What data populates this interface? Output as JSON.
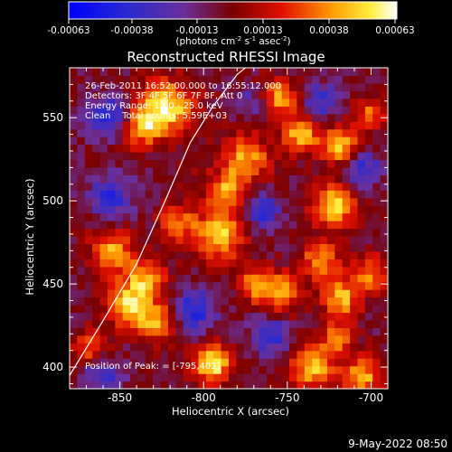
{
  "colorbar": {
    "tick_labels": [
      "-0.00063",
      "-0.00038",
      "-0.00013",
      "0.00013",
      "0.00038",
      "0.00063"
    ],
    "units_parts": [
      "(photons cm",
      "-2",
      " s",
      "-1",
      " asec",
      "-2",
      ")"
    ]
  },
  "chart_data": {
    "type": "heatmap",
    "title": "Reconstructed RHESSI Image",
    "xlabel": "Heliocentric X (arcsec)",
    "ylabel": "Heliocentric Y (arcsec)",
    "xlim": [
      -880,
      -690
    ],
    "ylim": [
      387,
      580
    ],
    "x_ticks": [
      -850,
      -800,
      -750,
      -700
    ],
    "y_ticks": [
      400,
      450,
      500,
      550
    ],
    "value_range": [
      -0.00063,
      0.00063
    ],
    "colormap": "blue-purple-red-yellow-white",
    "annotations": [
      "26-Feb-2011 16:52:00.000 to 16:55:12.000",
      "Detectors: 3F 4F 5F 6F 7F 8F, Att 0",
      "Energy Range: 12.0 - 25.0 keV",
      "Clean    Total counts: 5.59E+03"
    ],
    "peak_label": "Position of Peak: = [-795,402]",
    "peak": [
      -795,
      402
    ],
    "limb_curve": [
      [
        -880,
        395
      ],
      [
        -860,
        428
      ],
      [
        -840,
        462
      ],
      [
        -823,
        500
      ],
      [
        -808,
        535
      ],
      [
        -795,
        556
      ],
      [
        -780,
        576
      ],
      [
        -775,
        580
      ]
    ],
    "grid_cols": 42,
    "grid_rows": 42,
    "hotspots": [
      {
        "x": -795,
        "y": 402,
        "amp": 1.0,
        "sigma": 8
      },
      {
        "x": -822,
        "y": 557,
        "amp": 0.95,
        "sigma": 11
      },
      {
        "x": -838,
        "y": 545,
        "amp": 0.75,
        "sigma": 9
      },
      {
        "x": -775,
        "y": 525,
        "amp": 0.75,
        "sigma": 10
      },
      {
        "x": -787,
        "y": 505,
        "amp": 0.7,
        "sigma": 8
      },
      {
        "x": -790,
        "y": 479,
        "amp": 0.85,
        "sigma": 10
      },
      {
        "x": -815,
        "y": 487,
        "amp": 0.6,
        "sigma": 8
      },
      {
        "x": -855,
        "y": 470,
        "amp": 0.75,
        "sigma": 9
      },
      {
        "x": -835,
        "y": 453,
        "amp": 0.7,
        "sigma": 9
      },
      {
        "x": -845,
        "y": 437,
        "amp": 0.8,
        "sigma": 9
      },
      {
        "x": -828,
        "y": 427,
        "amp": 0.7,
        "sigma": 8
      },
      {
        "x": -868,
        "y": 412,
        "amp": 0.55,
        "sigma": 7
      },
      {
        "x": -755,
        "y": 445,
        "amp": 0.7,
        "sigma": 9
      },
      {
        "x": -730,
        "y": 465,
        "amp": 0.7,
        "sigma": 8
      },
      {
        "x": -722,
        "y": 497,
        "amp": 0.9,
        "sigma": 9
      },
      {
        "x": -700,
        "y": 457,
        "amp": 0.6,
        "sigma": 8
      },
      {
        "x": -718,
        "y": 442,
        "amp": 0.8,
        "sigma": 8
      },
      {
        "x": -735,
        "y": 400,
        "amp": 0.85,
        "sigma": 9
      },
      {
        "x": -720,
        "y": 418,
        "amp": 0.6,
        "sigma": 7
      },
      {
        "x": -705,
        "y": 395,
        "amp": 0.75,
        "sigma": 8
      },
      {
        "x": -755,
        "y": 562,
        "amp": 0.75,
        "sigma": 8
      },
      {
        "x": -742,
        "y": 540,
        "amp": 0.8,
        "sigma": 8
      },
      {
        "x": -718,
        "y": 533,
        "amp": 0.8,
        "sigma": 8
      },
      {
        "x": -700,
        "y": 553,
        "amp": 0.55,
        "sigma": 7
      },
      {
        "x": -770,
        "y": 450,
        "amp": 0.55,
        "sigma": 7
      },
      {
        "x": -812,
        "y": 520,
        "amp": 0.6,
        "sigma": 8
      }
    ],
    "coldspots": [
      {
        "x": -855,
        "y": 550,
        "amp": -0.7,
        "sigma": 9
      },
      {
        "x": -815,
        "y": 520,
        "amp": -0.5,
        "sigma": 8
      },
      {
        "x": -855,
        "y": 503,
        "amp": -0.55,
        "sigma": 9
      },
      {
        "x": -805,
        "y": 435,
        "amp": -0.6,
        "sigma": 9
      },
      {
        "x": -760,
        "y": 420,
        "amp": -0.6,
        "sigma": 8
      },
      {
        "x": -730,
        "y": 560,
        "amp": -0.5,
        "sigma": 8
      },
      {
        "x": -705,
        "y": 520,
        "amp": -0.55,
        "sigma": 8
      },
      {
        "x": -765,
        "y": 495,
        "amp": -0.55,
        "sigma": 8
      },
      {
        "x": -860,
        "y": 395,
        "amp": -0.5,
        "sigma": 8
      },
      {
        "x": -770,
        "y": 560,
        "amp": -0.4,
        "sigma": 6
      }
    ]
  },
  "footer": {
    "timestamp": "9-May-2022 08:50"
  }
}
